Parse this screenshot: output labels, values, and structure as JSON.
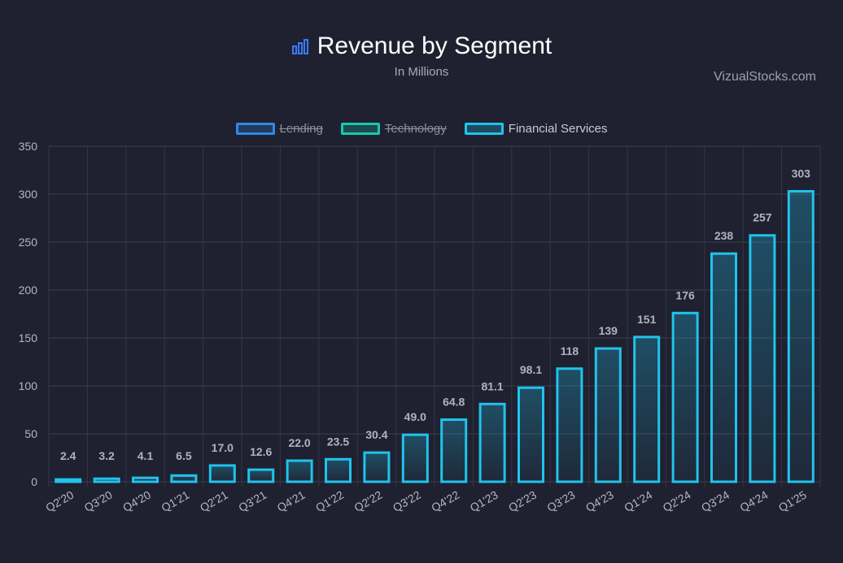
{
  "header": {
    "title": "Revenue by Segment",
    "subtitle": "In Millions",
    "brand": "VizualStocks.com",
    "title_icon": "bar-chart-icon"
  },
  "legend": [
    {
      "label": "Lending",
      "color": "#2f8ae6",
      "hidden": true
    },
    {
      "label": "Technology",
      "color": "#17c9a9",
      "hidden": true
    },
    {
      "label": "Financial Services",
      "color": "#20c3ec",
      "hidden": false
    }
  ],
  "chart_data": {
    "type": "bar",
    "title": "Revenue by Segment",
    "subtitle": "In Millions",
    "categories": [
      "Q2'20",
      "Q3'20",
      "Q4'20",
      "Q1'21",
      "Q2'21",
      "Q3'21",
      "Q4'21",
      "Q1'22",
      "Q2'22",
      "Q3'22",
      "Q4'22",
      "Q1'23",
      "Q2'23",
      "Q3'23",
      "Q4'23",
      "Q1'24",
      "Q2'24",
      "Q3'24",
      "Q4'24",
      "Q1'25"
    ],
    "series": [
      {
        "name": "Financial Services",
        "values": [
          2.4,
          3.2,
          4.1,
          6.5,
          17.0,
          12.6,
          22.0,
          23.5,
          30.4,
          49.0,
          64.8,
          81.1,
          98.1,
          118,
          139,
          151,
          176,
          238,
          257,
          303
        ],
        "labels": [
          "2.4",
          "3.2",
          "4.1",
          "6.5",
          "17.0",
          "12.6",
          "22.0",
          "23.5",
          "30.4",
          "49.0",
          "64.8",
          "81.1",
          "98.1",
          "118",
          "139",
          "151",
          "176",
          "238",
          "257",
          "303"
        ],
        "color": "#20c3ec"
      }
    ],
    "ylim": [
      0,
      350
    ],
    "yticks": [
      0,
      50,
      100,
      150,
      200,
      250,
      300,
      350
    ],
    "grid": true,
    "legend_position": "top-center",
    "xlabel": "",
    "ylabel": ""
  }
}
